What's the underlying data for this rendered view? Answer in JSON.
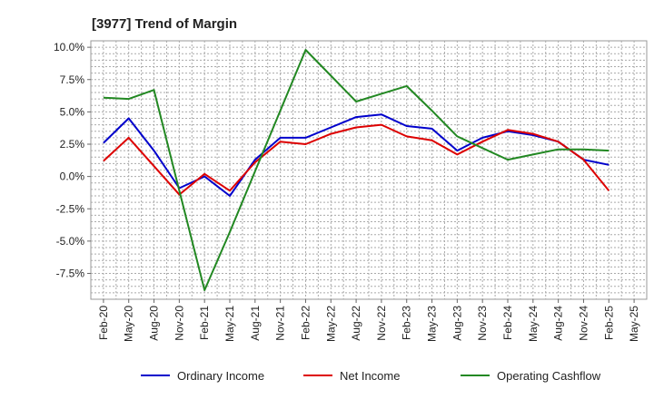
{
  "chart_data": {
    "type": "line",
    "title": "[3977]  Trend of Margin",
    "xlabel": "",
    "ylabel": "",
    "categories": [
      "Feb-20",
      "May-20",
      "Aug-20",
      "Nov-20",
      "Feb-21",
      "May-21",
      "Aug-21",
      "Nov-21",
      "Feb-22",
      "May-22",
      "Aug-22",
      "Nov-22",
      "Feb-23",
      "May-23",
      "Aug-23",
      "Nov-23",
      "Feb-24",
      "May-24",
      "Aug-24",
      "Nov-24",
      "Feb-25",
      "May-25"
    ],
    "y_ticks": [
      "10.0%",
      "7.5%",
      "5.0%",
      "2.5%",
      "0.0%",
      "-2.5%",
      "-5.0%",
      "-7.5%"
    ],
    "y_tick_values": [
      10,
      7.5,
      5,
      2.5,
      0,
      -2.5,
      -5,
      -7.5
    ],
    "ylim": [
      -9.5,
      10.5
    ],
    "grid": true,
    "legend_position": "bottom",
    "series": [
      {
        "name": "Ordinary Income",
        "color": "#0000cc",
        "values": [
          2.6,
          4.5,
          2.0,
          -0.9,
          0.0,
          -1.5,
          1.3,
          3.0,
          3.0,
          3.8,
          4.6,
          4.8,
          3.9,
          3.7,
          2.0,
          3.0,
          3.5,
          3.2,
          2.7,
          1.3,
          0.9,
          null
        ]
      },
      {
        "name": "Net Income",
        "color": "#dd0000",
        "values": [
          1.2,
          3.0,
          0.8,
          -1.4,
          0.2,
          -1.1,
          1.1,
          2.7,
          2.5,
          3.3,
          3.8,
          4.0,
          3.1,
          2.8,
          1.7,
          2.7,
          3.6,
          3.3,
          2.7,
          1.3,
          -1.1,
          null
        ]
      },
      {
        "name": "Operating Cashflow",
        "color": "#228822",
        "values": [
          6.1,
          6.0,
          6.7,
          -1.1,
          -8.8,
          -4.3,
          0.4,
          5.1,
          9.8,
          7.8,
          5.8,
          6.4,
          7.0,
          5.1,
          3.1,
          2.2,
          1.3,
          1.7,
          2.1,
          2.1,
          2.0,
          null
        ]
      }
    ]
  }
}
